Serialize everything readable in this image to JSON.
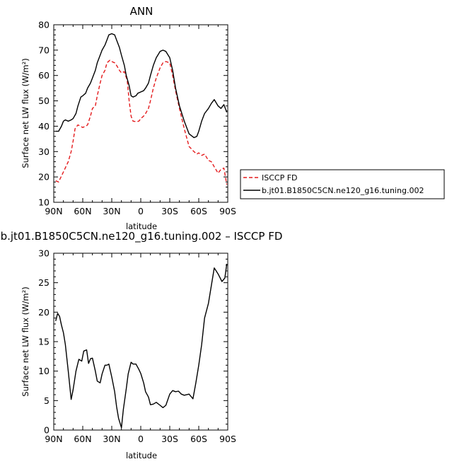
{
  "chart_data": [
    {
      "type": "line",
      "title": "ANN",
      "xlabel": "latitude",
      "ylabel": "Surface net LW flux (W/m²)",
      "xlim": [
        90,
        -90
      ],
      "ylim": [
        10,
        80
      ],
      "xticks": [
        90,
        60,
        30,
        0,
        -30,
        -60,
        -90
      ],
      "xtick_labels": [
        "90N",
        "60N",
        "30N",
        "0",
        "30S",
        "60S",
        "90S"
      ],
      "yticks": [
        10,
        20,
        30,
        40,
        50,
        60,
        70,
        80
      ],
      "ytick_labels": [
        "10",
        "20",
        "30",
        "40",
        "50",
        "60",
        "70",
        "80"
      ],
      "legend_position": "right",
      "series": [
        {
          "name": "ISCCP FD",
          "color": "#e41a1c",
          "dashed": true,
          "x": [
            88,
            85,
            80,
            75,
            72,
            70,
            68,
            65,
            60,
            57,
            55,
            52,
            50,
            47,
            45,
            42,
            40,
            37,
            35,
            32,
            30,
            27,
            25,
            22,
            20,
            17,
            14,
            12,
            10,
            8,
            5,
            2,
            0,
            -3,
            -5,
            -8,
            -10,
            -13,
            -16,
            -20,
            -23,
            -26,
            -30,
            -33,
            -36,
            -40,
            -45,
            -50,
            -55,
            -58,
            -60,
            -63,
            -66,
            -70,
            -73,
            -76,
            -80,
            -83,
            -86,
            -89
          ],
          "y": [
            18.5,
            18,
            22,
            26,
            30,
            34,
            39,
            40.5,
            39.5,
            40,
            40.5,
            44,
            47,
            48,
            52,
            57,
            60,
            62,
            65,
            66,
            65.5,
            65,
            64,
            62,
            61,
            61.5,
            58,
            50,
            44,
            42,
            41.8,
            42,
            43,
            44,
            45,
            47,
            50,
            55,
            59,
            63,
            65,
            65.5,
            65,
            60,
            54,
            47,
            39,
            32,
            30,
            29,
            29.5,
            28.5,
            29,
            26.5,
            26,
            24,
            21.5,
            23,
            23.5,
            17
          ]
        },
        {
          "name": "b.jt01.B1850C5CN.ne120_g16.tuning.002",
          "color": "#000000",
          "dashed": false,
          "x": [
            88,
            85,
            82,
            80,
            78,
            75,
            72,
            70,
            67,
            65,
            62,
            60,
            57,
            55,
            52,
            50,
            47,
            45,
            42,
            40,
            37,
            35,
            33,
            30,
            27,
            25,
            22,
            20,
            17,
            15,
            12,
            10,
            8,
            5,
            3,
            0,
            -3,
            -5,
            -8,
            -10,
            -13,
            -16,
            -20,
            -23,
            -26,
            -30,
            -33,
            -36,
            -40,
            -45,
            -50,
            -55,
            -58,
            -60,
            -63,
            -66,
            -70,
            -73,
            -76,
            -80,
            -83,
            -86,
            -89
          ],
          "y": [
            38,
            38,
            40,
            42,
            42.5,
            42,
            42.5,
            43,
            45,
            48,
            51.5,
            52,
            53,
            55,
            57,
            59,
            62,
            65,
            68,
            70,
            72,
            74,
            76,
            76.5,
            76,
            74,
            71,
            68,
            64,
            60,
            56,
            52,
            51.5,
            52,
            53,
            53.5,
            54,
            55,
            57,
            60,
            64,
            67,
            69.5,
            70,
            69.5,
            67,
            62,
            55,
            48,
            42,
            37,
            35.5,
            36,
            38,
            42,
            45,
            47,
            49,
            50.5,
            48,
            47,
            48.5,
            45.5
          ]
        }
      ]
    },
    {
      "type": "line",
      "title": "b.jt01.B1850C5CN.ne120_g16.tuning.002 – ISCCP FD",
      "xlabel": "latitude",
      "ylabel": "Surface net LW flux (W/m²)",
      "xlim": [
        90,
        -90
      ],
      "ylim": [
        0,
        30
      ],
      "xticks": [
        90,
        60,
        30,
        0,
        -30,
        -60,
        -90
      ],
      "xtick_labels": [
        "90N",
        "60N",
        "30N",
        "0",
        "30S",
        "60S",
        "90S"
      ],
      "yticks": [
        0,
        5,
        10,
        15,
        20,
        25,
        30
      ],
      "ytick_labels": [
        "0",
        "5",
        "10",
        "15",
        "20",
        "25",
        "30"
      ],
      "series": [
        {
          "color": "#000000",
          "dashed": false,
          "x": [
            88,
            86,
            84,
            82,
            80,
            78,
            75,
            72,
            70,
            67,
            64,
            61,
            59,
            56,
            54,
            52,
            50,
            47,
            45,
            42,
            40,
            37,
            35,
            33,
            30,
            27,
            25,
            23,
            20,
            18,
            15,
            13,
            10,
            8,
            5,
            2,
            0,
            -3,
            -5,
            -8,
            -10,
            -13,
            -16,
            -20,
            -23,
            -26,
            -30,
            -33,
            -36,
            -39,
            -42,
            -45,
            -50,
            -54,
            -57,
            -60,
            -63,
            -66,
            -70,
            -73,
            -76,
            -80,
            -84,
            -87,
            -89
          ],
          "y": [
            18.5,
            19.8,
            19.3,
            17.8,
            16.5,
            14.5,
            10,
            5.2,
            6.8,
            10,
            12,
            11.7,
            13.4,
            13.6,
            11.3,
            12.1,
            12.2,
            10,
            8.3,
            8,
            9.5,
            11,
            11,
            11.2,
            9,
            6.5,
            4,
            2,
            0.4,
            3.5,
            7,
            9.5,
            11.5,
            11.2,
            11.2,
            10.3,
            9.6,
            8,
            6.5,
            5.6,
            4.3,
            4.4,
            4.7,
            4.2,
            3.8,
            4.2,
            6.1,
            6.7,
            6.5,
            6.6,
            6.1,
            5.9,
            6.1,
            5.3,
            8,
            11,
            14.5,
            19,
            21.5,
            24.5,
            27.5,
            26.5,
            25.2,
            25.8,
            28.2
          ]
        }
      ]
    }
  ]
}
